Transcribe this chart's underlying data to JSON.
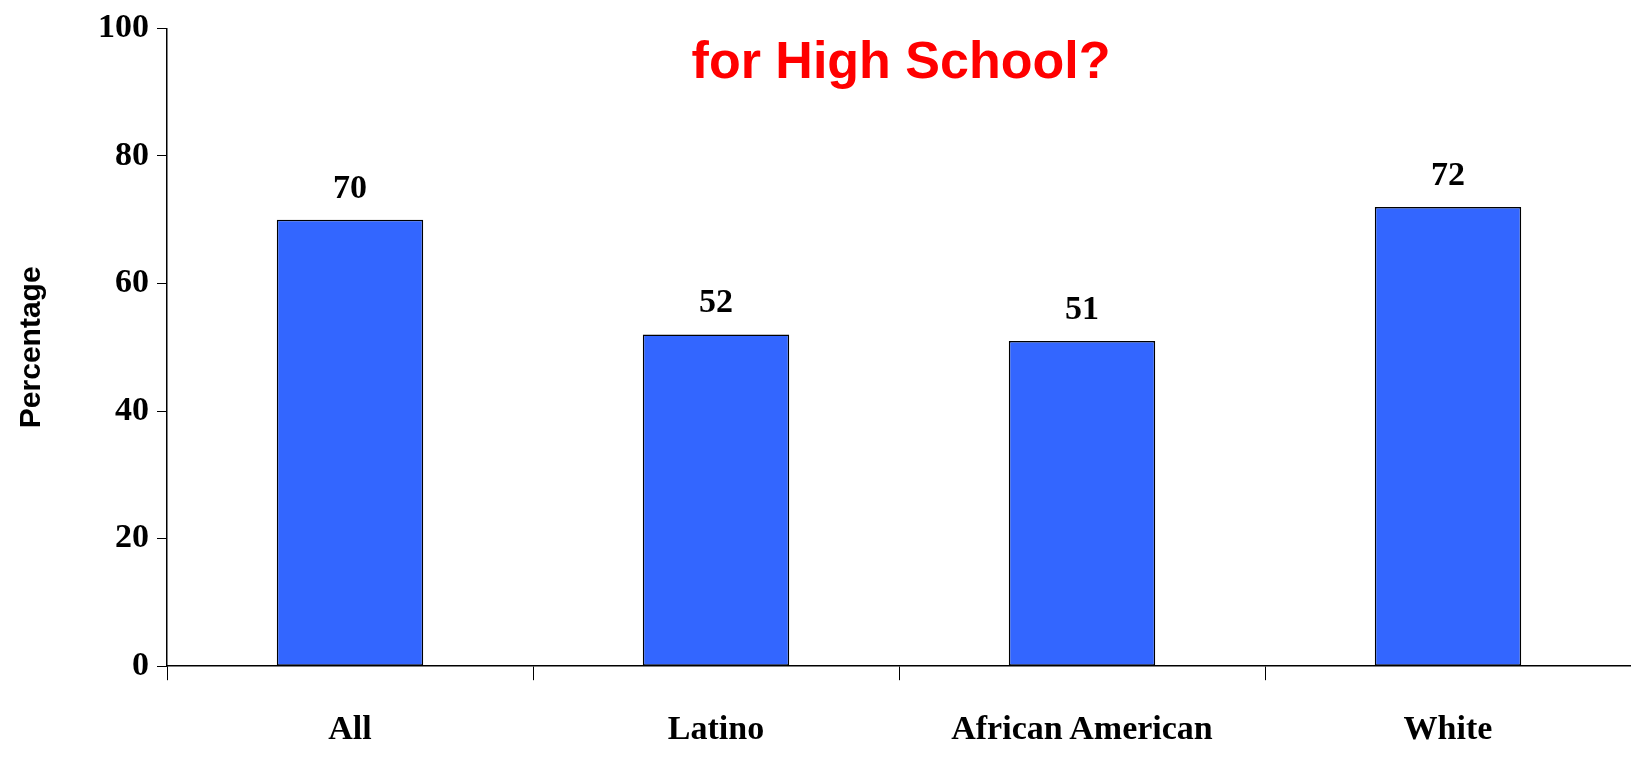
{
  "chart_data": {
    "type": "bar",
    "title": "for High School?",
    "ylabel": "Percentage",
    "categories": [
      "All",
      "Latino",
      "African American",
      "White"
    ],
    "values": [
      70,
      52,
      51,
      72
    ],
    "color": "#3366ff",
    "ylim": [
      0,
      100
    ],
    "yticks": [
      0,
      20,
      40,
      60,
      80,
      100
    ],
    "grid": false,
    "legend": false,
    "data_labels": true
  }
}
